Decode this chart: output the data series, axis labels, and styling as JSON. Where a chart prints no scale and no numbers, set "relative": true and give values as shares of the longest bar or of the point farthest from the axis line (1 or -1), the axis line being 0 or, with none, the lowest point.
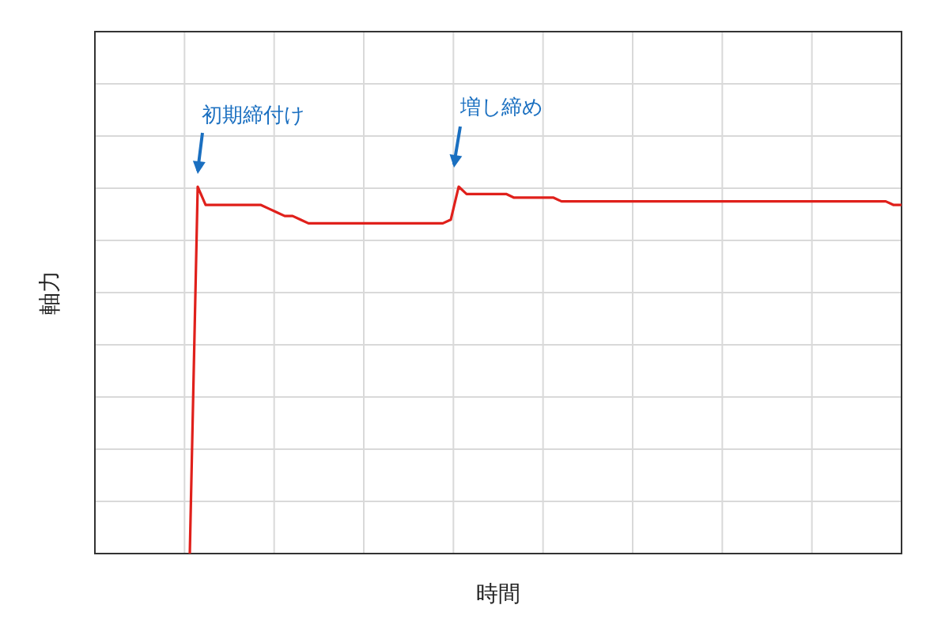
{
  "chart_data": {
    "type": "line",
    "relative": true,
    "grid": true,
    "xlabel": "時間",
    "ylabel": "軸力",
    "annotations": [
      "初期締付け",
      "増し締め"
    ],
    "categories": [
      null,
      null,
      null,
      null,
      null,
      null,
      null,
      null,
      null,
      null,
      null,
      null,
      null,
      null,
      null,
      null,
      null,
      null,
      null,
      null,
      null,
      null,
      null,
      null,
      null,
      null,
      null,
      null,
      null,
      null,
      null,
      null,
      null,
      null,
      null,
      null,
      null,
      null,
      null,
      null,
      null,
      null,
      null,
      null,
      null,
      null,
      null,
      null,
      null,
      null,
      null,
      null,
      null,
      null,
      null,
      null,
      null,
      null,
      null,
      null,
      null,
      null,
      null,
      null,
      null,
      null,
      null,
      null,
      null,
      null,
      null,
      null,
      null,
      null,
      null,
      null,
      null,
      null,
      null,
      null,
      null,
      null,
      null,
      null,
      null,
      null,
      null,
      null,
      null,
      null,
      null,
      null,
      null,
      null,
      null,
      null,
      null,
      null,
      null,
      null,
      null,
      null,
      null
    ],
    "series": [
      {
        "color": "#e0201b",
        "values": [
          null,
          null,
          null,
          null,
          null,
          null,
          null,
          null,
          null,
          null,
          null,
          null,
          0,
          1.0,
          0.95,
          0.95,
          0.95,
          0.95,
          0.95,
          0.95,
          0.95,
          0.95,
          0.94,
          0.93,
          0.92,
          0.92,
          0.91,
          0.9,
          0.9,
          0.9,
          0.9,
          0.9,
          0.9,
          0.9,
          0.9,
          0.9,
          0.9,
          0.9,
          0.9,
          0.9,
          0.9,
          0.9,
          0.9,
          0.9,
          0.9,
          0.91,
          1.0,
          0.98,
          0.98,
          0.98,
          0.98,
          0.98,
          0.98,
          0.97,
          0.97,
          0.97,
          0.97,
          0.97,
          0.97,
          0.96,
          0.96,
          0.96,
          0.96,
          0.96,
          0.96,
          0.96,
          0.96,
          0.96,
          0.96,
          0.96,
          0.96,
          0.96,
          0.96,
          0.96,
          0.96,
          0.96,
          0.96,
          0.96,
          0.96,
          0.96,
          0.96,
          0.96,
          0.96,
          0.96,
          0.96,
          0.96,
          0.96,
          0.96,
          0.96,
          0.96,
          0.96,
          0.96,
          0.96,
          0.96,
          0.96,
          0.96,
          0.96,
          0.96,
          0.96,
          0.96,
          0.96,
          0.95,
          0.95
        ]
      }
    ]
  }
}
